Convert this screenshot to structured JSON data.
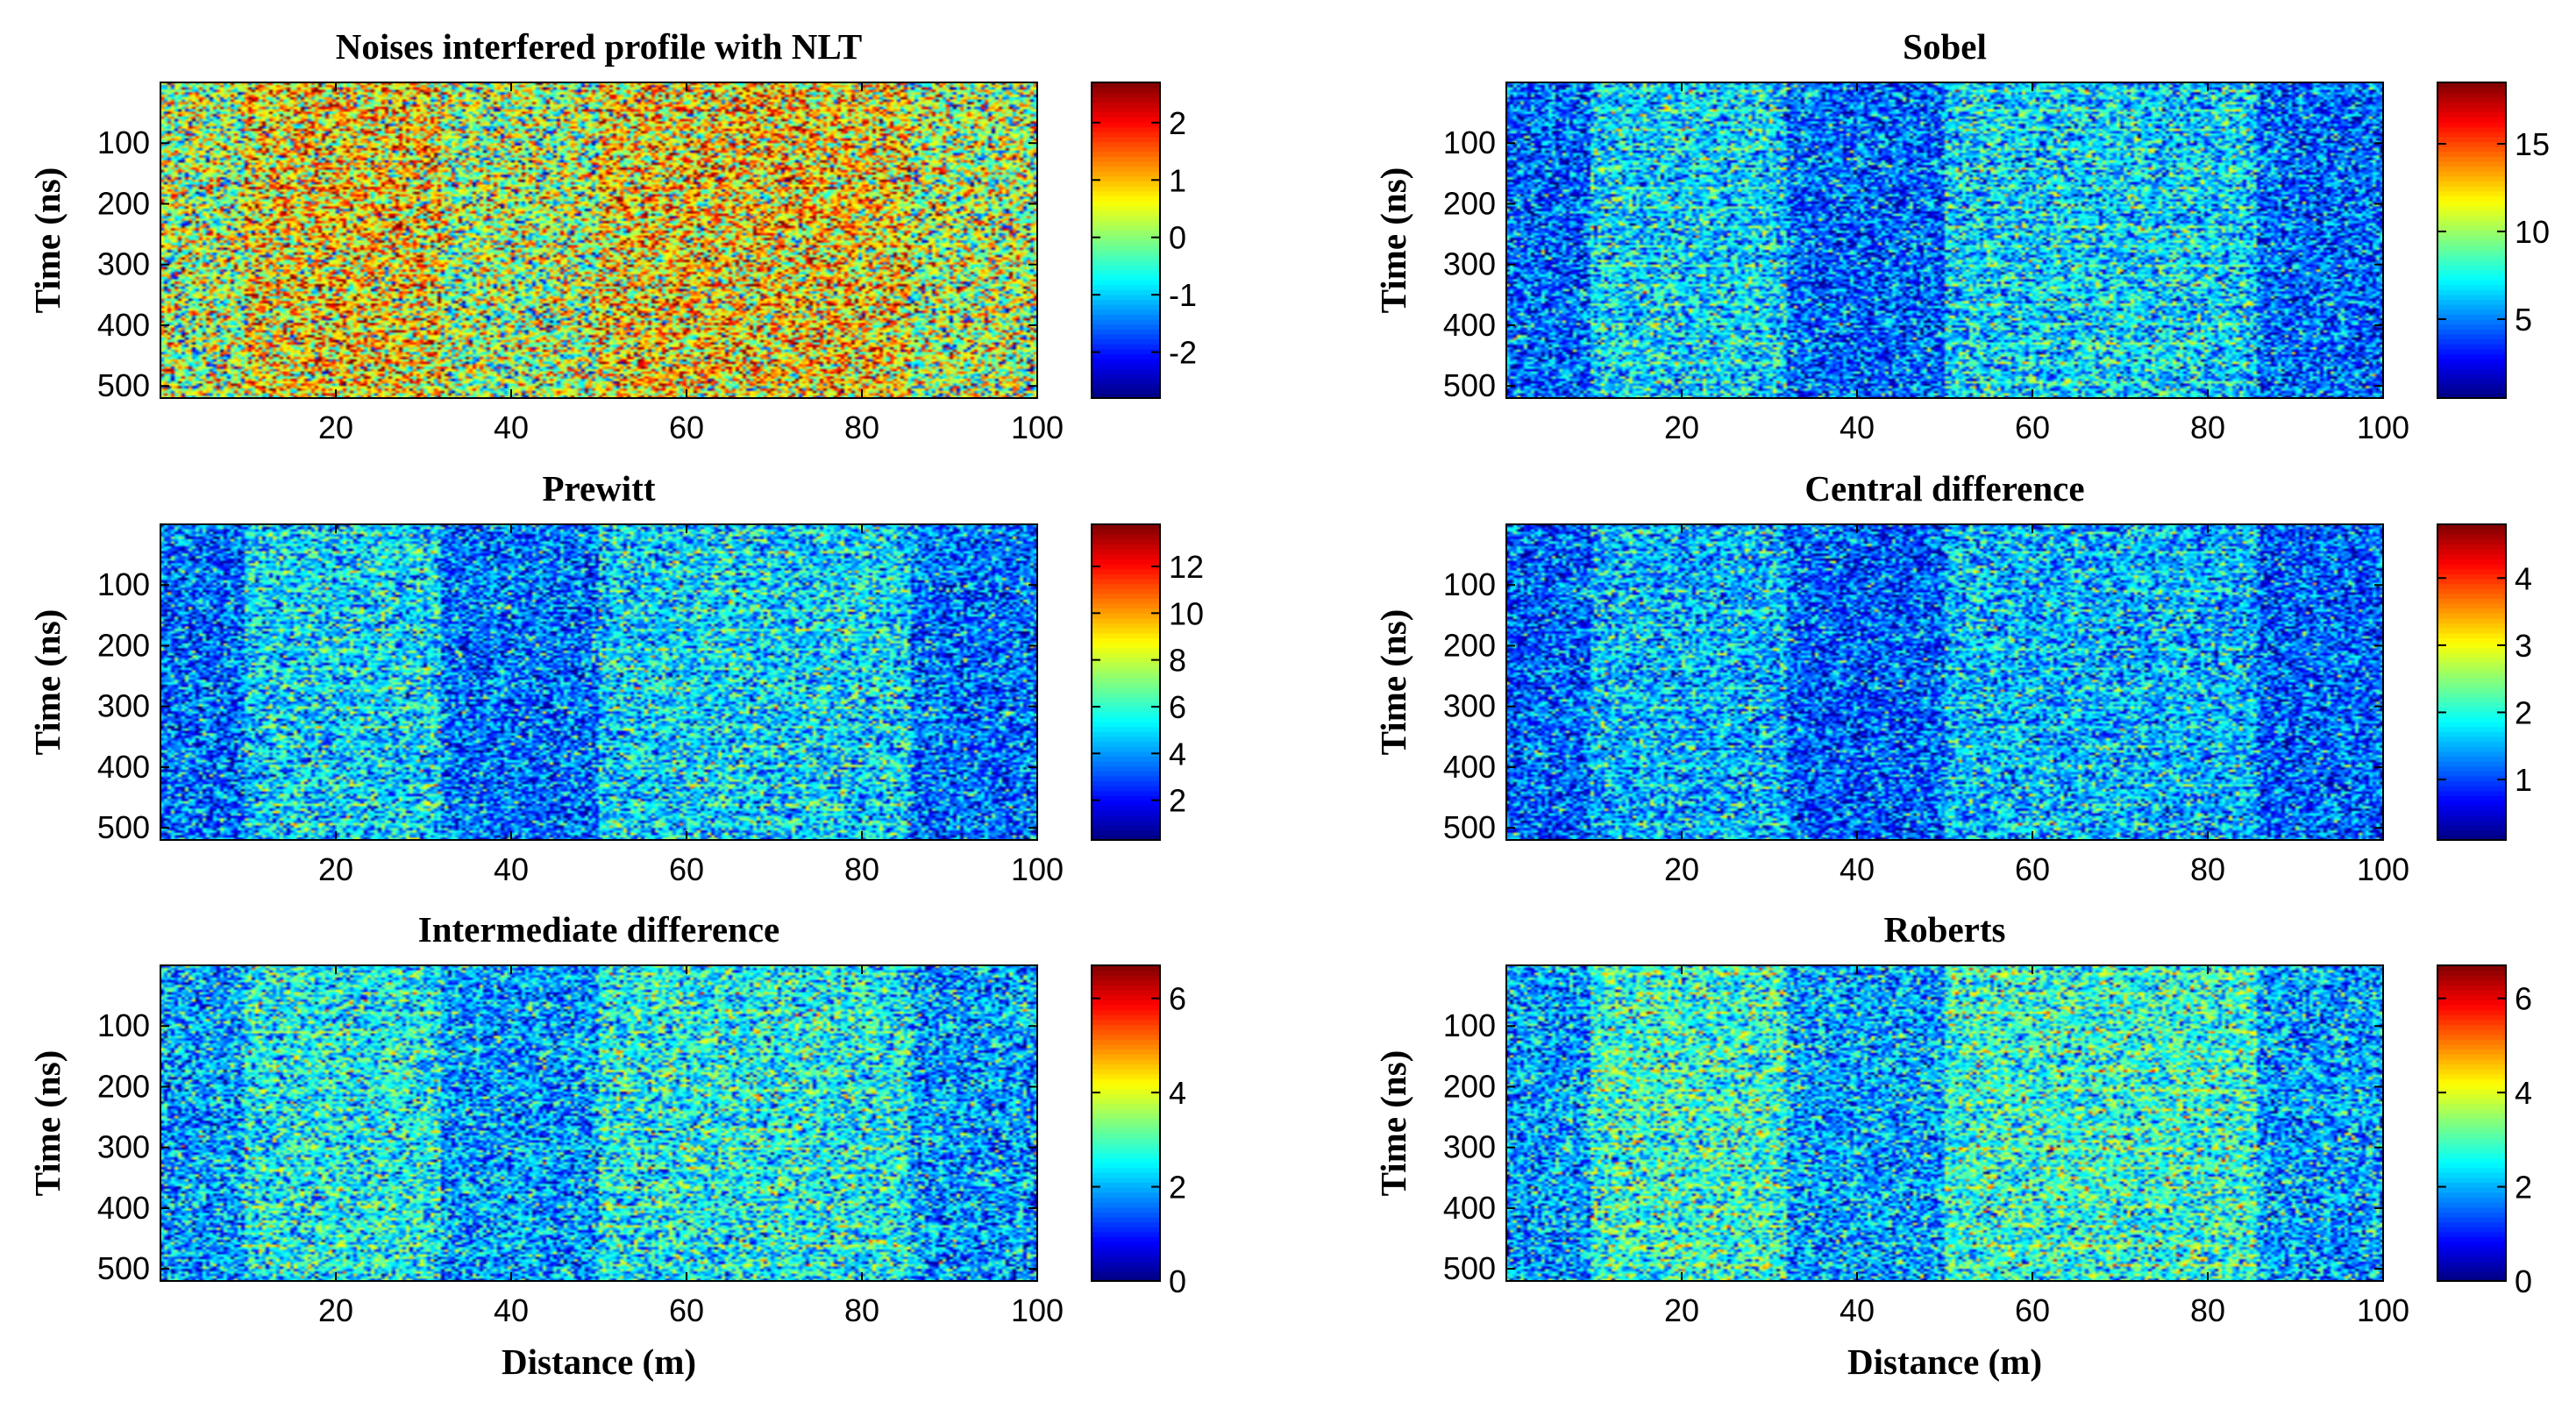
{
  "figure": {
    "xlabel": "Distance (m)",
    "ylabel": "Time (ns)"
  },
  "chart_data": [
    {
      "type": "heatmap",
      "title": "Noises interfered profile with NLT",
      "xlabel": "",
      "ylabel": "Time (ns)",
      "xlim": [
        0,
        100
      ],
      "ylim": [
        520,
        0
      ],
      "xticks": [
        "20",
        "40",
        "60",
        "80",
        "100"
      ],
      "yticks": [
        "100",
        "200",
        "300",
        "400",
        "500"
      ],
      "colorbar": {
        "range": [
          -2.8,
          2.7
        ],
        "ticks": [
          "2",
          "1",
          "0",
          "-1",
          "-2"
        ],
        "tick_values": [
          2,
          1,
          0,
          -1,
          -2
        ]
      },
      "bands": [
        [
          9.5,
          32
        ],
        [
          50,
          85.5
        ]
      ],
      "base_mean": 0.1,
      "band_mean": 0.7,
      "noise": 1.1
    },
    {
      "type": "heatmap",
      "title": "Sobel",
      "xlabel": "",
      "ylabel": "Time (ns)",
      "xlim": [
        0,
        100
      ],
      "ylim": [
        520,
        0
      ],
      "xticks": [
        "20",
        "40",
        "60",
        "80",
        "100"
      ],
      "yticks": [
        "100",
        "200",
        "300",
        "400",
        "500"
      ],
      "colorbar": {
        "range": [
          0.5,
          18.5
        ],
        "ticks": [
          "15",
          "10",
          "5"
        ],
        "tick_values": [
          15,
          10,
          5
        ]
      },
      "bands": [
        [
          9.5,
          32
        ],
        [
          50,
          85.5
        ]
      ],
      "base_mean": 4.5,
      "band_mean": 6.5,
      "noise": 2.4
    },
    {
      "type": "heatmap",
      "title": "Prewitt",
      "xlabel": "",
      "ylabel": "Time (ns)",
      "xlim": [
        0,
        100
      ],
      "ylim": [
        520,
        0
      ],
      "xticks": [
        "20",
        "40",
        "60",
        "80",
        "100"
      ],
      "yticks": [
        "100",
        "200",
        "300",
        "400",
        "500"
      ],
      "colorbar": {
        "range": [
          0.3,
          13.8
        ],
        "ticks": [
          "12",
          "10",
          "8",
          "6",
          "4",
          "2"
        ],
        "tick_values": [
          12,
          10,
          8,
          6,
          4,
          2
        ]
      },
      "bands": [
        [
          9.5,
          32
        ],
        [
          50,
          85.5
        ]
      ],
      "base_mean": 3.4,
      "band_mean": 4.8,
      "noise": 1.8
    },
    {
      "type": "heatmap",
      "title": "Central difference",
      "xlabel": "",
      "ylabel": "Time (ns)",
      "xlim": [
        0,
        100
      ],
      "ylim": [
        520,
        0
      ],
      "xticks": [
        "20",
        "40",
        "60",
        "80",
        "100"
      ],
      "yticks": [
        "100",
        "200",
        "300",
        "400",
        "500"
      ],
      "colorbar": {
        "range": [
          0.1,
          4.8
        ],
        "ticks": [
          "4",
          "3",
          "2",
          "1"
        ],
        "tick_values": [
          4,
          3,
          2,
          1
        ]
      },
      "bands": [
        [
          9.5,
          32
        ],
        [
          50,
          85.5
        ]
      ],
      "base_mean": 1.1,
      "band_mean": 1.5,
      "noise": 0.6
    },
    {
      "type": "heatmap",
      "title": "Intermediate difference",
      "xlabel": "Distance (m)",
      "ylabel": "Time (ns)",
      "xlim": [
        0,
        100
      ],
      "ylim": [
        520,
        0
      ],
      "xticks": [
        "20",
        "40",
        "60",
        "80",
        "100"
      ],
      "yticks": [
        "100",
        "200",
        "300",
        "400",
        "500"
      ],
      "colorbar": {
        "range": [
          0,
          6.7
        ],
        "ticks": [
          "6",
          "4",
          "2",
          "0"
        ],
        "tick_values": [
          6,
          4,
          2,
          0
        ]
      },
      "bands": [
        [
          9.5,
          32
        ],
        [
          50,
          85.5
        ]
      ],
      "base_mean": 1.9,
      "band_mean": 2.5,
      "noise": 0.9
    },
    {
      "type": "heatmap",
      "title": "Roberts",
      "xlabel": "Distance (m)",
      "ylabel": "Time (ns)",
      "xlim": [
        0,
        100
      ],
      "ylim": [
        520,
        0
      ],
      "xticks": [
        "20",
        "40",
        "60",
        "80",
        "100"
      ],
      "yticks": [
        "100",
        "200",
        "300",
        "400",
        "500"
      ],
      "colorbar": {
        "range": [
          0,
          6.7
        ],
        "ticks": [
          "6",
          "4",
          "2",
          "0"
        ],
        "tick_values": [
          6,
          4,
          2,
          0
        ]
      },
      "bands": [
        [
          9.5,
          32
        ],
        [
          50,
          85.5
        ]
      ],
      "base_mean": 1.9,
      "band_mean": 2.7,
      "noise": 0.9
    }
  ]
}
